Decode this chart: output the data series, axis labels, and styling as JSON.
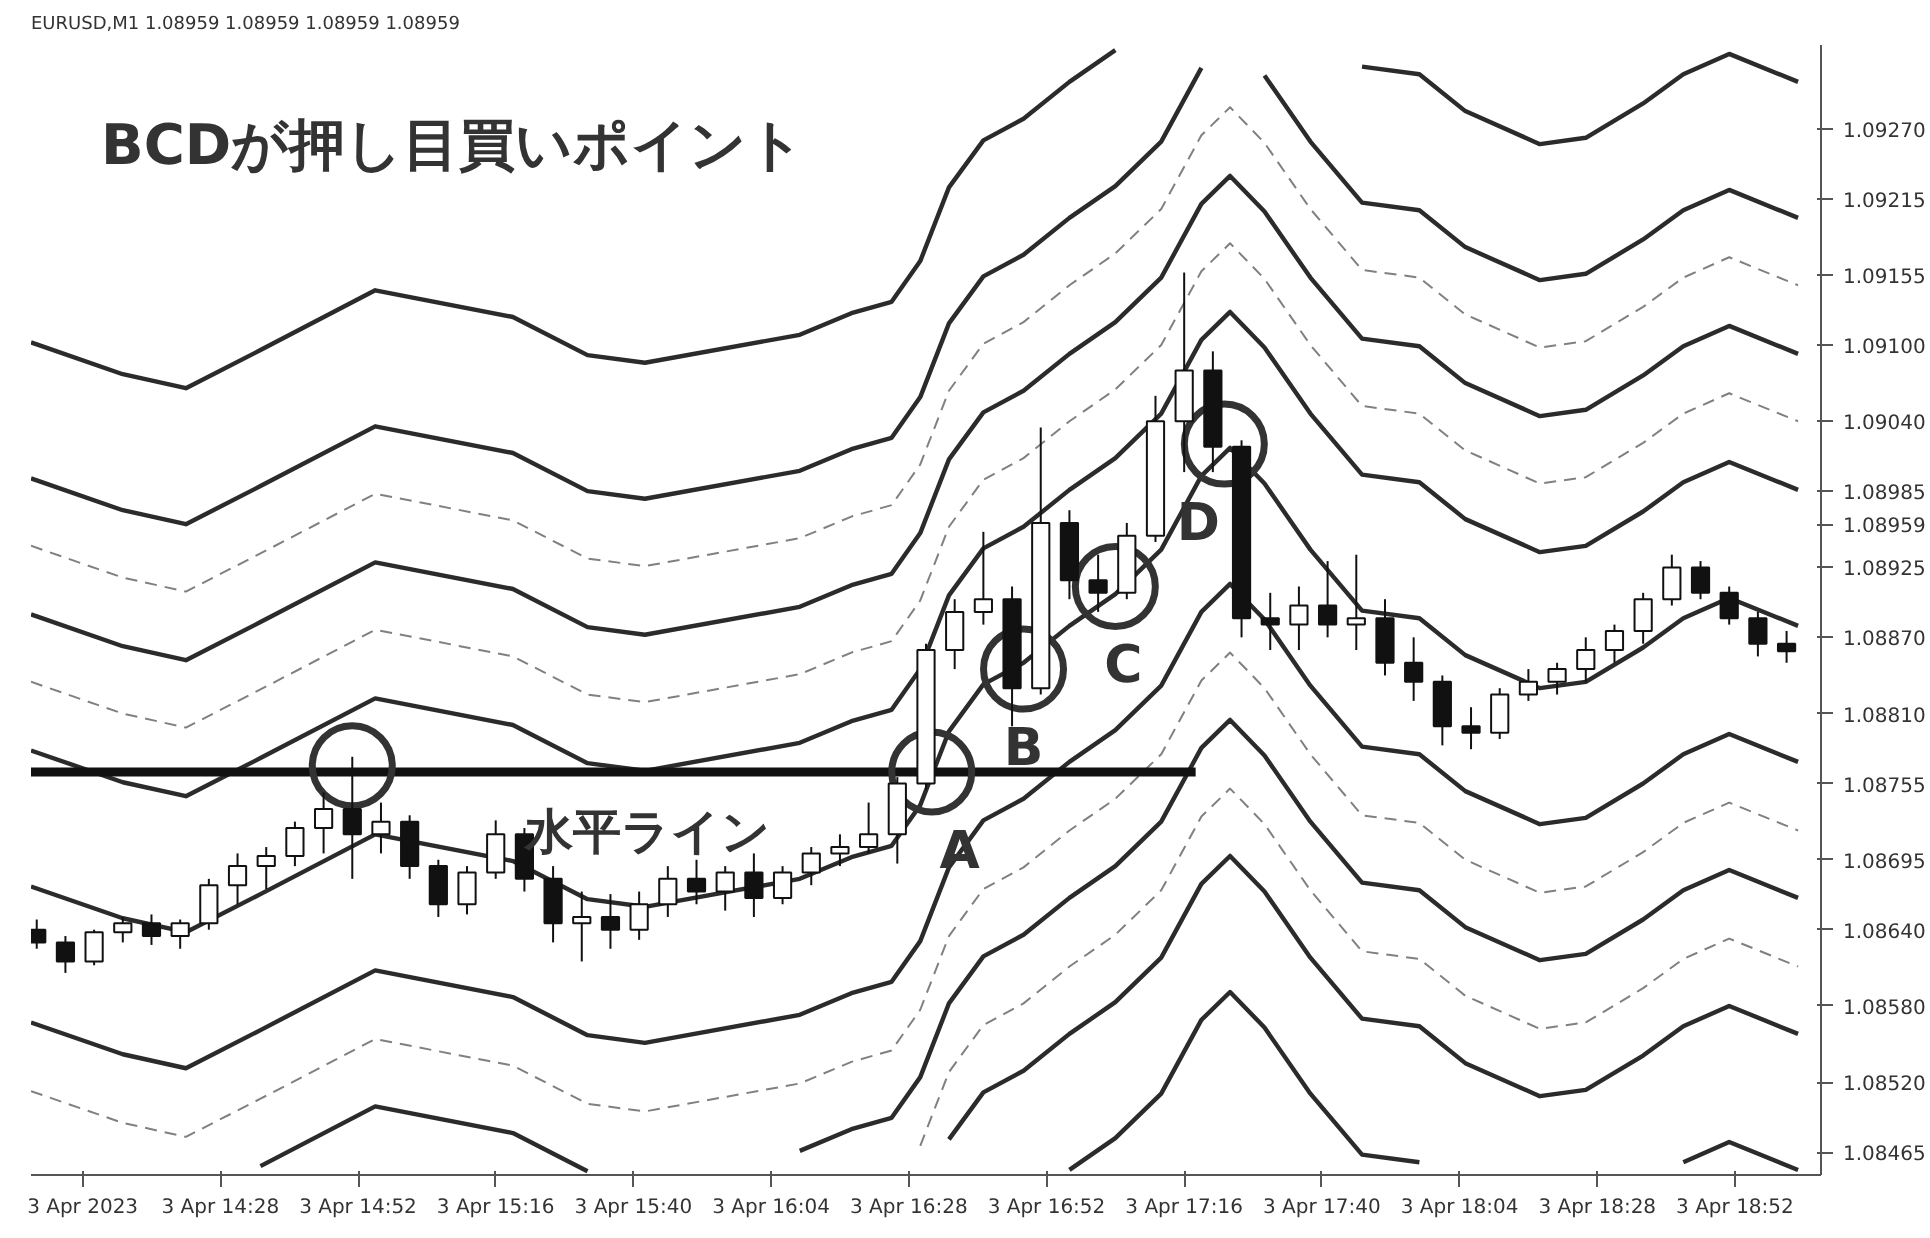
{
  "chart_data": {
    "type": "candlestick",
    "title": "EURUSD,M1  1.08959 1.08959 1.08959 1.08959",
    "annotations": [
      "BCDが押し目買いポイント",
      "水平ライン",
      "A",
      "B",
      "C",
      "D"
    ],
    "xlim": [
      "2023-04-03T13:55",
      "2023-04-03T19:07"
    ],
    "ylim": [
      1.08447,
      1.09336
    ],
    "xticks": [
      {
        "value": "2023-04-03T14:04",
        "label": "3 Apr 2023"
      },
      {
        "value": "2023-04-03T14:28",
        "label": "3 Apr 14:28"
      },
      {
        "value": "2023-04-03T14:52",
        "label": "3 Apr 14:52"
      },
      {
        "value": "2023-04-03T15:16",
        "label": "3 Apr 15:16"
      },
      {
        "value": "2023-04-03T15:40",
        "label": "3 Apr 15:40"
      },
      {
        "value": "2023-04-03T16:04",
        "label": "3 Apr 16:04"
      },
      {
        "value": "2023-04-03T16:28",
        "label": "3 Apr 16:28"
      },
      {
        "value": "2023-04-03T16:52",
        "label": "3 Apr 16:52"
      },
      {
        "value": "2023-04-03T17:16",
        "label": "3 Apr 17:16"
      },
      {
        "value": "2023-04-03T17:40",
        "label": "3 Apr 17:40"
      },
      {
        "value": "2023-04-03T18:04",
        "label": "3 Apr 18:04"
      },
      {
        "value": "2023-04-03T18:28",
        "label": "3 Apr 18:28"
      },
      {
        "value": "2023-04-03T18:52",
        "label": "3 Apr 18:52"
      }
    ],
    "yticks": [
      1.08465,
      {
        "value": 1.0852,
        "label": "1.08520"
      },
      {
        "value": 1.0858,
        "label": "1.08580"
      },
      {
        "value": 1.0864,
        "label": "1.08640"
      },
      1.08695,
      1.08755,
      {
        "value": 1.0881,
        "label": "1.08810"
      },
      {
        "value": 1.0887,
        "label": "1.08870"
      },
      1.08925,
      {
        "value": 1.08959,
        "label": "1.08959"
      },
      1.08985,
      {
        "value": 1.0904,
        "label": "1.09040"
      },
      {
        "value": 1.091,
        "label": "1.09100"
      },
      1.09155,
      1.09215,
      {
        "value": 1.0927,
        "label": "1.09270"
      }
    ],
    "color": "#111111",
    "x": [
      "2023-04-03T13:56",
      "2023-04-03T14:01",
      "2023-04-03T14:06",
      "2023-04-03T14:11",
      "2023-04-03T14:16",
      "2023-04-03T14:21",
      "2023-04-03T14:26",
      "2023-04-03T14:31",
      "2023-04-03T14:36",
      "2023-04-03T14:41",
      "2023-04-03T14:46",
      "2023-04-03T14:51",
      "2023-04-03T14:56",
      "2023-04-03T15:01",
      "2023-04-03T15:06",
      "2023-04-03T15:11",
      "2023-04-03T15:16",
      "2023-04-03T15:21",
      "2023-04-03T15:26",
      "2023-04-03T15:31",
      "2023-04-03T15:36",
      "2023-04-03T15:41",
      "2023-04-03T15:46",
      "2023-04-03T15:51",
      "2023-04-03T15:56",
      "2023-04-03T16:01",
      "2023-04-03T16:06",
      "2023-04-03T16:11",
      "2023-04-03T16:16",
      "2023-04-03T16:21",
      "2023-04-03T16:26",
      "2023-04-03T16:31",
      "2023-04-03T16:36",
      "2023-04-03T16:41",
      "2023-04-03T16:46",
      "2023-04-03T16:51",
      "2023-04-03T16:56",
      "2023-04-03T17:01",
      "2023-04-03T17:06",
      "2023-04-03T17:11",
      "2023-04-03T17:16",
      "2023-04-03T17:21",
      "2023-04-03T17:26",
      "2023-04-03T17:31",
      "2023-04-03T17:36",
      "2023-04-03T17:41",
      "2023-04-03T17:46",
      "2023-04-03T17:51",
      "2023-04-03T17:56",
      "2023-04-03T18:01",
      "2023-04-03T18:06",
      "2023-04-03T18:11",
      "2023-04-03T18:16",
      "2023-04-03T18:21",
      "2023-04-03T18:26",
      "2023-04-03T18:31",
      "2023-04-03T18:36",
      "2023-04-03T18:41",
      "2023-04-03T18:46",
      "2023-04-03T18:51",
      "2023-04-03T18:56",
      "2023-04-03T19:01"
    ],
    "ohlc": [
      [
        1.0864,
        1.08648,
        1.08625,
        1.0863
      ],
      [
        1.0863,
        1.08635,
        1.08606,
        1.08615
      ],
      [
        1.08615,
        1.0864,
        1.08612,
        1.08638
      ],
      [
        1.08638,
        1.0865,
        1.0863,
        1.08645
      ],
      [
        1.08645,
        1.08652,
        1.08628,
        1.08635
      ],
      [
        1.08635,
        1.08648,
        1.08625,
        1.08645
      ],
      [
        1.08645,
        1.0868,
        1.0864,
        1.08675
      ],
      [
        1.08675,
        1.087,
        1.0866,
        1.0869
      ],
      [
        1.0869,
        1.08705,
        1.08672,
        1.08698
      ],
      [
        1.08698,
        1.08725,
        1.0869,
        1.0872
      ],
      [
        1.0872,
        1.08748,
        1.087,
        1.08735
      ],
      [
        1.08735,
        1.08776,
        1.0868,
        1.08715
      ],
      [
        1.08715,
        1.0874,
        1.087,
        1.08725
      ],
      [
        1.08725,
        1.0873,
        1.0868,
        1.0869
      ],
      [
        1.0869,
        1.08695,
        1.0865,
        1.0866
      ],
      [
        1.0866,
        1.0869,
        1.08652,
        1.08685
      ],
      [
        1.08685,
        1.08726,
        1.0868,
        1.08715
      ],
      [
        1.08715,
        1.0872,
        1.0867,
        1.0868
      ],
      [
        1.0868,
        1.0869,
        1.0863,
        1.08645
      ],
      [
        1.08645,
        1.0867,
        1.08615,
        1.0865
      ],
      [
        1.0865,
        1.08668,
        1.08625,
        1.0864
      ],
      [
        1.0864,
        1.0867,
        1.08632,
        1.0866
      ],
      [
        1.0866,
        1.0869,
        1.0865,
        1.0868
      ],
      [
        1.0868,
        1.08695,
        1.0866,
        1.0867
      ],
      [
        1.0867,
        1.0869,
        1.08655,
        1.08685
      ],
      [
        1.08685,
        1.087,
        1.0865,
        1.08665
      ],
      [
        1.08665,
        1.0869,
        1.0866,
        1.08685
      ],
      [
        1.08685,
        1.08705,
        1.08675,
        1.087
      ],
      [
        1.087,
        1.08715,
        1.0869,
        1.08705
      ],
      [
        1.08705,
        1.0874,
        1.087,
        1.08715
      ],
      [
        1.08715,
        1.0876,
        1.08692,
        1.08755
      ],
      [
        1.08755,
        1.08865,
        1.0875,
        1.0886
      ],
      [
        1.0886,
        1.089,
        1.08845,
        1.0889
      ],
      [
        1.0889,
        1.08953,
        1.0888,
        1.089
      ],
      [
        1.089,
        1.0891,
        1.088,
        1.0883
      ],
      [
        1.0883,
        1.09035,
        1.08825,
        1.0896
      ],
      [
        1.0896,
        1.0897,
        1.089,
        1.08915
      ],
      [
        1.08915,
        1.08935,
        1.0889,
        1.08905
      ],
      [
        1.08905,
        1.0896,
        1.089,
        1.0895
      ],
      [
        1.0895,
        1.0906,
        1.08945,
        1.0904
      ],
      [
        1.0904,
        1.09157,
        1.09,
        1.0908
      ],
      [
        1.0908,
        1.09095,
        1.09,
        1.0902
      ],
      [
        1.0902,
        1.09025,
        1.0887,
        1.08885
      ],
      [
        1.08885,
        1.08905,
        1.0886,
        1.0888
      ],
      [
        1.0888,
        1.0891,
        1.0886,
        1.08895
      ],
      [
        1.08895,
        1.0893,
        1.0887,
        1.0888
      ],
      [
        1.0888,
        1.08935,
        1.0886,
        1.08885
      ],
      [
        1.08885,
        1.089,
        1.0884,
        1.0885
      ],
      [
        1.0885,
        1.0887,
        1.0882,
        1.08835
      ],
      [
        1.08835,
        1.0884,
        1.08785,
        1.088
      ],
      [
        1.088,
        1.08815,
        1.08782,
        1.08795
      ],
      [
        1.08795,
        1.0883,
        1.0879,
        1.08825
      ],
      [
        1.08825,
        1.08845,
        1.0882,
        1.08835
      ],
      [
        1.08835,
        1.0885,
        1.08825,
        1.08845
      ],
      [
        1.08845,
        1.0887,
        1.08835,
        1.0886
      ],
      [
        1.0886,
        1.0888,
        1.0885,
        1.08875
      ],
      [
        1.08875,
        1.08905,
        1.08865,
        1.089
      ],
      [
        1.089,
        1.08935,
        1.08895,
        1.08925
      ],
      [
        1.08925,
        1.0893,
        1.089,
        1.08905
      ],
      [
        1.08905,
        1.0891,
        1.0888,
        1.08885
      ],
      [
        1.08885,
        1.0889,
        1.08855,
        1.08865
      ],
      [
        1.08865,
        1.08875,
        1.0885,
        1.08859
      ]
    ],
    "series": [
      {
        "type": "line",
        "line_style": "solid",
        "color": "#2b2b2b",
        "x": [
          "2023-04-03T13:55",
          "2023-04-03T14:11",
          "2023-04-03T14:22",
          "2023-04-03T14:35",
          "2023-04-03T14:55",
          "2023-04-03T15:19",
          "2023-04-03T15:32",
          "2023-04-03T15:42",
          "2023-04-03T16:09",
          "2023-04-03T16:18",
          "2023-04-03T16:25",
          "2023-04-03T16:30",
          "2023-04-03T16:35",
          "2023-04-03T16:41",
          "2023-04-03T16:48",
          "2023-04-03T16:56",
          "2023-04-03T17:04",
          "2023-04-03T17:12",
          "2023-04-03T17:19",
          "2023-04-03T17:24",
          "2023-04-03T17:30",
          "2023-04-03T17:38",
          "2023-04-03T17:47",
          "2023-04-03T17:57",
          "2023-04-03T18:05",
          "2023-04-03T18:18",
          "2023-04-03T18:26",
          "2023-04-03T18:36",
          "2023-04-03T18:43",
          "2023-04-03T18:51",
          "2023-04-03T19:03"
        ],
        "values": [
          1.09102,
          1.09077,
          1.09066,
          1.09096,
          1.09143,
          1.09122,
          1.09092,
          1.09086,
          1.09108,
          1.09125,
          1.09134,
          1.09166,
          1.09224,
          1.09261,
          1.09278,
          1.09307,
          1.09332,
          null,
          null,
          null,
          null,
          null,
          1.09319,
          1.09313,
          1.09284,
          1.09258,
          1.09263,
          1.0929,
          1.09313,
          1.09329,
          1.09307
        ]
      },
      {
        "type": "line",
        "line_style": "solid",
        "color": "#2b2b2b",
        "x": [
          "2023-04-03T13:55",
          "2023-04-03T14:11",
          "2023-04-03T14:22",
          "2023-04-03T14:35",
          "2023-04-03T14:55",
          "2023-04-03T15:19",
          "2023-04-03T15:32",
          "2023-04-03T15:42",
          "2023-04-03T16:09",
          "2023-04-03T16:18",
          "2023-04-03T16:25",
          "2023-04-03T16:30",
          "2023-04-03T16:35",
          "2023-04-03T16:41",
          "2023-04-03T16:48",
          "2023-04-03T16:56",
          "2023-04-03T17:04",
          "2023-04-03T17:12",
          "2023-04-03T17:19",
          "2023-04-03T17:24",
          "2023-04-03T17:30",
          "2023-04-03T17:38",
          "2023-04-03T17:47",
          "2023-04-03T17:57",
          "2023-04-03T18:05",
          "2023-04-03T18:18",
          "2023-04-03T18:26",
          "2023-04-03T18:36",
          "2023-04-03T18:43",
          "2023-04-03T18:51",
          "2023-04-03T19:03"
        ],
        "values": [
          1.08995,
          1.0897,
          1.08959,
          1.08989,
          1.09036,
          1.09015,
          1.08985,
          1.08979,
          1.09001,
          1.09018,
          1.09027,
          1.09059,
          1.09117,
          1.09154,
          1.09171,
          1.092,
          1.09225,
          1.0926,
          1.09318,
          null,
          1.09312,
          1.0926,
          1.09212,
          1.09206,
          1.09177,
          1.09151,
          1.09156,
          1.09183,
          1.09206,
          1.09222,
          1.092
        ]
      },
      {
        "type": "line",
        "line_style": "dashed",
        "color": "#808080",
        "x": [
          "2023-04-03T13:55",
          "2023-04-03T14:11",
          "2023-04-03T14:22",
          "2023-04-03T14:35",
          "2023-04-03T14:55",
          "2023-04-03T15:19",
          "2023-04-03T15:32",
          "2023-04-03T15:42",
          "2023-04-03T16:09",
          "2023-04-03T16:18",
          "2023-04-03T16:25",
          "2023-04-03T16:30",
          "2023-04-03T16:35",
          "2023-04-03T16:41",
          "2023-04-03T16:48",
          "2023-04-03T16:56",
          "2023-04-03T17:04",
          "2023-04-03T17:12",
          "2023-04-03T17:19",
          "2023-04-03T17:24",
          "2023-04-03T17:30",
          "2023-04-03T17:38",
          "2023-04-03T17:47",
          "2023-04-03T17:57",
          "2023-04-03T18:05",
          "2023-04-03T18:18",
          "2023-04-03T18:26",
          "2023-04-03T18:36",
          "2023-04-03T18:43",
          "2023-04-03T18:51",
          "2023-04-03T19:03"
        ],
        "values": [
          1.08942,
          1.08917,
          1.08906,
          1.08936,
          1.08983,
          1.08962,
          1.08932,
          1.08926,
          1.08948,
          1.08965,
          1.08974,
          1.09006,
          1.09064,
          1.09101,
          1.09118,
          1.09147,
          1.09172,
          1.09207,
          1.09265,
          1.09287,
          1.09259,
          1.09207,
          1.09159,
          1.09153,
          1.09124,
          1.09098,
          1.09103,
          1.0913,
          1.09153,
          1.09169,
          1.09147
        ]
      },
      {
        "type": "line",
        "line_style": "solid",
        "color": "#2b2b2b",
        "x": [
          "2023-04-03T13:55",
          "2023-04-03T14:11",
          "2023-04-03T14:22",
          "2023-04-03T14:35",
          "2023-04-03T14:55",
          "2023-04-03T15:19",
          "2023-04-03T15:32",
          "2023-04-03T15:42",
          "2023-04-03T16:09",
          "2023-04-03T16:18",
          "2023-04-03T16:25",
          "2023-04-03T16:30",
          "2023-04-03T16:35",
          "2023-04-03T16:41",
          "2023-04-03T16:48",
          "2023-04-03T16:56",
          "2023-04-03T17:04",
          "2023-04-03T17:12",
          "2023-04-03T17:19",
          "2023-04-03T17:24",
          "2023-04-03T17:30",
          "2023-04-03T17:38",
          "2023-04-03T17:47",
          "2023-04-03T17:57",
          "2023-04-03T18:05",
          "2023-04-03T18:18",
          "2023-04-03T18:26",
          "2023-04-03T18:36",
          "2023-04-03T18:43",
          "2023-04-03T18:51",
          "2023-04-03T19:03"
        ],
        "values": [
          1.08888,
          1.08863,
          1.08852,
          1.08882,
          1.08929,
          1.08908,
          1.08878,
          1.08872,
          1.08894,
          1.08911,
          1.0892,
          1.08952,
          1.0901,
          1.09047,
          1.09064,
          1.09093,
          1.09118,
          1.09153,
          1.09211,
          1.09233,
          1.09205,
          1.09153,
          1.09105,
          1.09099,
          1.0907,
          1.09044,
          1.09049,
          1.09076,
          1.09099,
          1.09115,
          1.09093
        ]
      },
      {
        "type": "line",
        "line_style": "dashed",
        "color": "#808080",
        "x": [
          "2023-04-03T13:55",
          "2023-04-03T14:11",
          "2023-04-03T14:22",
          "2023-04-03T14:35",
          "2023-04-03T14:55",
          "2023-04-03T15:19",
          "2023-04-03T15:32",
          "2023-04-03T15:42",
          "2023-04-03T16:09",
          "2023-04-03T16:18",
          "2023-04-03T16:25",
          "2023-04-03T16:30",
          "2023-04-03T16:35",
          "2023-04-03T16:41",
          "2023-04-03T16:48",
          "2023-04-03T16:56",
          "2023-04-03T17:04",
          "2023-04-03T17:12",
          "2023-04-03T17:19",
          "2023-04-03T17:24",
          "2023-04-03T17:30",
          "2023-04-03T17:38",
          "2023-04-03T17:47",
          "2023-04-03T17:57",
          "2023-04-03T18:05",
          "2023-04-03T18:18",
          "2023-04-03T18:26",
          "2023-04-03T18:36",
          "2023-04-03T18:43",
          "2023-04-03T18:51",
          "2023-04-03T19:03"
        ],
        "values": [
          1.08835,
          1.0881,
          1.08799,
          1.08829,
          1.08876,
          1.08855,
          1.08825,
          1.08819,
          1.08841,
          1.08858,
          1.08867,
          1.08899,
          1.08957,
          1.08994,
          1.09011,
          1.0904,
          1.09065,
          1.091,
          1.09158,
          1.0918,
          1.09152,
          1.091,
          1.09052,
          1.09046,
          1.09017,
          1.08991,
          1.08996,
          1.09023,
          1.09046,
          1.09062,
          1.0904
        ]
      },
      {
        "type": "line",
        "line_style": "solid",
        "color": "#2b2b2b",
        "x": [
          "2023-04-03T13:55",
          "2023-04-03T14:11",
          "2023-04-03T14:22",
          "2023-04-03T14:35",
          "2023-04-03T14:55",
          "2023-04-03T15:19",
          "2023-04-03T15:32",
          "2023-04-03T15:42",
          "2023-04-03T16:09",
          "2023-04-03T16:18",
          "2023-04-03T16:25",
          "2023-04-03T16:30",
          "2023-04-03T16:35",
          "2023-04-03T16:41",
          "2023-04-03T16:48",
          "2023-04-03T16:56",
          "2023-04-03T17:04",
          "2023-04-03T17:12",
          "2023-04-03T17:19",
          "2023-04-03T17:24",
          "2023-04-03T17:30",
          "2023-04-03T17:38",
          "2023-04-03T17:47",
          "2023-04-03T17:57",
          "2023-04-03T18:05",
          "2023-04-03T18:18",
          "2023-04-03T18:26",
          "2023-04-03T18:36",
          "2023-04-03T18:43",
          "2023-04-03T18:51",
          "2023-04-03T19:03"
        ],
        "values": [
          1.08781,
          1.08756,
          1.08745,
          1.08775,
          1.08822,
          1.08801,
          1.08771,
          1.08765,
          1.08787,
          1.08804,
          1.08813,
          1.08845,
          1.08903,
          1.0894,
          1.08957,
          1.08986,
          1.09011,
          1.09046,
          1.09104,
          1.09126,
          1.09098,
          1.09046,
          1.08998,
          1.08992,
          1.08963,
          1.08937,
          1.08942,
          1.08969,
          1.08992,
          1.09008,
          1.08986
        ]
      },
      {
        "type": "line",
        "line_style": "solid",
        "color": "#2b2b2b",
        "x": [
          "2023-04-03T13:55",
          "2023-04-03T14:11",
          "2023-04-03T14:22",
          "2023-04-03T14:35",
          "2023-04-03T14:55",
          "2023-04-03T15:19",
          "2023-04-03T15:32",
          "2023-04-03T15:42",
          "2023-04-03T16:09",
          "2023-04-03T16:18",
          "2023-04-03T16:25",
          "2023-04-03T16:30",
          "2023-04-03T16:35",
          "2023-04-03T16:41",
          "2023-04-03T16:48",
          "2023-04-03T16:56",
          "2023-04-03T17:04",
          "2023-04-03T17:12",
          "2023-04-03T17:19",
          "2023-04-03T17:24",
          "2023-04-03T17:30",
          "2023-04-03T17:38",
          "2023-04-03T17:47",
          "2023-04-03T17:57",
          "2023-04-03T18:05",
          "2023-04-03T18:18",
          "2023-04-03T18:26",
          "2023-04-03T18:36",
          "2023-04-03T18:43",
          "2023-04-03T18:51",
          "2023-04-03T19:03"
        ],
        "values": [
          1.08674,
          1.08649,
          1.08638,
          1.08668,
          1.08715,
          1.08694,
          1.08664,
          1.08658,
          1.0868,
          1.08697,
          1.08706,
          1.08738,
          1.08796,
          1.08833,
          1.0885,
          1.08879,
          1.08904,
          1.08939,
          1.08997,
          1.09019,
          1.08991,
          1.08939,
          1.08891,
          1.08885,
          1.08856,
          1.0883,
          1.08835,
          1.08862,
          1.08885,
          1.08901,
          1.08879
        ]
      },
      {
        "type": "line",
        "line_style": "solid",
        "color": "#2b2b2b",
        "x": [
          "2023-04-03T13:55",
          "2023-04-03T14:11",
          "2023-04-03T14:22",
          "2023-04-03T14:35",
          "2023-04-03T14:55",
          "2023-04-03T15:19",
          "2023-04-03T15:32",
          "2023-04-03T15:42",
          "2023-04-03T16:09",
          "2023-04-03T16:18",
          "2023-04-03T16:25",
          "2023-04-03T16:30",
          "2023-04-03T16:35",
          "2023-04-03T16:41",
          "2023-04-03T16:48",
          "2023-04-03T16:56",
          "2023-04-03T17:04",
          "2023-04-03T17:12",
          "2023-04-03T17:19",
          "2023-04-03T17:24",
          "2023-04-03T17:30",
          "2023-04-03T17:38",
          "2023-04-03T17:47",
          "2023-04-03T17:57",
          "2023-04-03T18:05",
          "2023-04-03T18:18",
          "2023-04-03T18:26",
          "2023-04-03T18:36",
          "2023-04-03T18:43",
          "2023-04-03T18:51",
          "2023-04-03T19:03"
        ],
        "values": [
          1.08567,
          1.08542,
          1.08531,
          1.08561,
          1.08608,
          1.08587,
          1.08557,
          1.08551,
          1.08573,
          1.0859,
          1.08599,
          1.08631,
          1.08689,
          1.08726,
          1.08743,
          1.08772,
          1.08797,
          1.08832,
          1.0889,
          1.08912,
          1.08884,
          1.08832,
          1.08784,
          1.08778,
          1.08749,
          1.08723,
          1.08728,
          1.08755,
          1.08778,
          1.08794,
          1.08772
        ]
      },
      {
        "type": "line",
        "line_style": "dashed",
        "color": "#808080",
        "x": [
          "2023-04-03T13:55",
          "2023-04-03T14:11",
          "2023-04-03T14:22",
          "2023-04-03T14:35",
          "2023-04-03T14:55",
          "2023-04-03T15:19",
          "2023-04-03T15:32",
          "2023-04-03T15:42",
          "2023-04-03T16:09",
          "2023-04-03T16:18",
          "2023-04-03T16:25",
          "2023-04-03T16:30",
          "2023-04-03T16:35",
          "2023-04-03T16:41",
          "2023-04-03T16:48",
          "2023-04-03T16:56",
          "2023-04-03T17:04",
          "2023-04-03T17:12",
          "2023-04-03T17:19",
          "2023-04-03T17:24",
          "2023-04-03T17:30",
          "2023-04-03T17:38",
          "2023-04-03T17:47",
          "2023-04-03T17:57",
          "2023-04-03T18:05",
          "2023-04-03T18:18",
          "2023-04-03T18:26",
          "2023-04-03T18:36",
          "2023-04-03T18:43",
          "2023-04-03T18:51",
          "2023-04-03T19:03"
        ],
        "values": [
          1.08513,
          1.08488,
          1.08477,
          1.08507,
          1.08554,
          1.08533,
          1.08503,
          1.08497,
          1.08519,
          1.08536,
          1.08545,
          1.08577,
          1.08635,
          1.08672,
          1.08689,
          1.08718,
          1.08743,
          1.08778,
          1.08836,
          1.08858,
          1.0883,
          1.08778,
          1.0873,
          1.08724,
          1.08695,
          1.08669,
          1.08674,
          1.08701,
          1.08724,
          1.0874,
          1.08718
        ]
      },
      {
        "type": "line",
        "line_style": "solid",
        "color": "#2b2b2b",
        "x": [
          "2023-04-03T14:35",
          "2023-04-03T14:55",
          "2023-04-03T15:19",
          "2023-04-03T15:32",
          "2023-04-03T15:42",
          "2023-04-03T16:09",
          "2023-04-03T16:18",
          "2023-04-03T16:25",
          "2023-04-03T16:30",
          "2023-04-03T16:35",
          "2023-04-03T16:41",
          "2023-04-03T16:48",
          "2023-04-03T16:56",
          "2023-04-03T17:04",
          "2023-04-03T17:12",
          "2023-04-03T17:19",
          "2023-04-03T17:24",
          "2023-04-03T17:30",
          "2023-04-03T17:38",
          "2023-04-03T17:47",
          "2023-04-03T17:57",
          "2023-04-03T18:05",
          "2023-04-03T18:18",
          "2023-04-03T18:26",
          "2023-04-03T18:36",
          "2023-04-03T18:43",
          "2023-04-03T18:51",
          "2023-04-03T19:03"
        ],
        "values": [
          1.08454,
          1.08501,
          1.0848,
          1.0845,
          null,
          1.08466,
          1.08483,
          1.08492,
          1.08524,
          1.08582,
          1.08619,
          1.08636,
          1.08665,
          1.0869,
          1.08725,
          1.08783,
          1.08805,
          1.08777,
          1.08725,
          1.08677,
          1.08671,
          1.08642,
          1.08616,
          1.08621,
          1.08648,
          1.08671,
          1.08687,
          1.08665
        ]
      },
      {
        "type": "line",
        "line_style": "dashed",
        "color": "#808080",
        "x": [
          "2023-04-03T16:30",
          "2023-04-03T16:35",
          "2023-04-03T16:41",
          "2023-04-03T16:48",
          "2023-04-03T16:56",
          "2023-04-03T17:04",
          "2023-04-03T17:12",
          "2023-04-03T17:19",
          "2023-04-03T17:24",
          "2023-04-03T17:30",
          "2023-04-03T17:38",
          "2023-04-03T17:47",
          "2023-04-03T17:57",
          "2023-04-03T18:05",
          "2023-04-03T18:18",
          "2023-04-03T18:26",
          "2023-04-03T18:36",
          "2023-04-03T18:43",
          "2023-04-03T18:51",
          "2023-04-03T19:03"
        ],
        "values": [
          1.0847,
          1.08528,
          1.08565,
          1.08582,
          1.08611,
          1.08636,
          1.08671,
          1.08729,
          1.08751,
          1.08723,
          1.08671,
          1.08623,
          1.08617,
          1.08588,
          1.08562,
          1.08567,
          1.08594,
          1.08617,
          1.08633,
          1.08611
        ]
      },
      {
        "type": "line",
        "line_style": "solid",
        "color": "#2b2b2b",
        "x": [
          "2023-04-03T16:35",
          "2023-04-03T16:41",
          "2023-04-03T16:48",
          "2023-04-03T16:56",
          "2023-04-03T17:04",
          "2023-04-03T17:12",
          "2023-04-03T17:19",
          "2023-04-03T17:24",
          "2023-04-03T17:30",
          "2023-04-03T17:38",
          "2023-04-03T17:47",
          "2023-04-03T17:57",
          "2023-04-03T18:05",
          "2023-04-03T18:18",
          "2023-04-03T18:26",
          "2023-04-03T18:36",
          "2023-04-03T18:43",
          "2023-04-03T18:51",
          "2023-04-03T19:03"
        ],
        "values": [
          1.08475,
          1.08512,
          1.08529,
          1.08558,
          1.08583,
          1.08618,
          1.08676,
          1.08698,
          1.0867,
          1.08618,
          1.0857,
          1.08564,
          1.08535,
          1.08509,
          1.08514,
          1.08541,
          1.08564,
          1.0858,
          1.08558
        ]
      },
      {
        "type": "line",
        "line_style": "solid",
        "color": "#2b2b2b",
        "x": [
          "2023-04-03T16:56",
          "2023-04-03T17:04",
          "2023-04-03T17:12",
          "2023-04-03T17:19",
          "2023-04-03T17:24",
          "2023-04-03T17:30",
          "2023-04-03T17:38",
          "2023-04-03T17:47",
          "2023-04-03T17:57",
          "2023-04-03T18:05",
          "2023-04-03T18:18",
          "2023-04-03T18:26",
          "2023-04-03T18:36",
          "2023-04-03T18:43",
          "2023-04-03T18:51",
          "2023-04-03T19:03"
        ],
        "values": [
          1.08451,
          1.08476,
          1.08511,
          1.08569,
          1.08591,
          1.08563,
          1.08511,
          1.08463,
          1.08457,
          null,
          null,
          null,
          null,
          1.08457,
          1.08473,
          1.08451
        ]
      },
      {
        "type": "line",
        "line_style": "solid",
        "color": "#111111",
        "x": [
          "2023-04-03T13:55",
          "2023-04-03T17:18"
        ],
        "values": [
          1.08764,
          1.08764
        ]
      },
      {
        "type": "scatter",
        "marker": "circle",
        "color": "#333333",
        "x": [
          "2023-04-03T14:51",
          "2023-04-03T16:32",
          "2023-04-03T16:48",
          "2023-04-03T17:04",
          "2023-04-03T17:23"
        ],
        "values": [
          1.08769,
          1.08764,
          1.08845,
          1.0891,
          1.09022
        ]
      }
    ]
  }
}
